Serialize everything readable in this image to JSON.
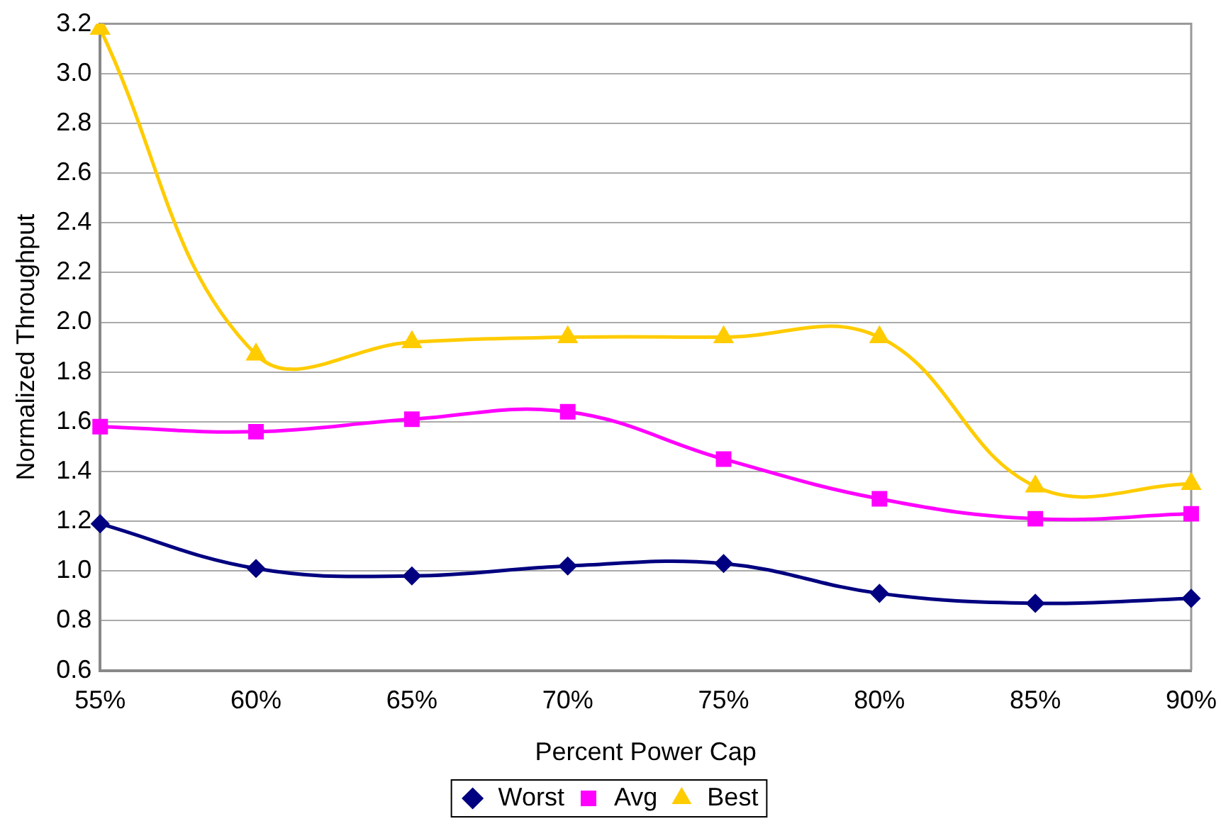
{
  "chart_data": {
    "type": "line",
    "xlabel": "Percent Power Cap",
    "ylabel": "Normalized Throughput",
    "categories": [
      "55%",
      "60%",
      "65%",
      "70%",
      "75%",
      "80%",
      "85%",
      "90%"
    ],
    "series": [
      {
        "name": "Worst",
        "color": "#000080",
        "marker": "diamond",
        "values": [
          1.19,
          1.01,
          0.98,
          1.02,
          1.03,
          0.91,
          0.87,
          0.89
        ]
      },
      {
        "name": "Avg",
        "color": "#ff00ff",
        "marker": "square",
        "values": [
          1.58,
          1.56,
          1.61,
          1.64,
          1.45,
          1.29,
          1.21,
          1.23
        ]
      },
      {
        "name": "Best",
        "color": "#ffcc00",
        "marker": "triangle",
        "values": [
          3.18,
          1.87,
          1.92,
          1.94,
          1.94,
          1.94,
          1.34,
          1.35
        ]
      }
    ],
    "ylim": [
      0.6,
      3.2
    ],
    "yticks": [
      {
        "value": 0.6,
        "label": "0.6"
      },
      {
        "value": 0.8,
        "label": "0.8"
      },
      {
        "value": 1,
        "label": "1.0"
      },
      {
        "value": 1.2,
        "label": "1.2"
      },
      {
        "value": 1.4,
        "label": "1.4"
      },
      {
        "value": 1.6,
        "label": "1.6"
      },
      {
        "value": 1.8,
        "label": "1.8"
      },
      {
        "value": 2,
        "label": "2.0"
      },
      {
        "value": 2.2,
        "label": "2.2"
      },
      {
        "value": 2.4,
        "label": "2.4"
      },
      {
        "value": 2.6,
        "label": "2.6"
      },
      {
        "value": 2.8,
        "label": "2.8"
      },
      {
        "value": 3,
        "label": "3.0"
      },
      {
        "value": 3.2,
        "label": "3.2"
      }
    ],
    "grid": "y",
    "legend": "bottom"
  }
}
